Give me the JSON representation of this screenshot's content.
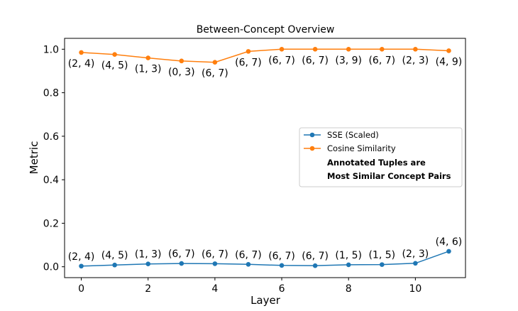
{
  "chart_data": {
    "type": "line",
    "title": "Between-Concept Overview",
    "xlabel": "Layer",
    "ylabel": "Metric",
    "xlim": [
      -0.5,
      11.5
    ],
    "ylim": [
      -0.05,
      1.05
    ],
    "xticks": [
      0,
      2,
      4,
      6,
      8,
      10
    ],
    "yticks": [
      0.0,
      0.2,
      0.4,
      0.6,
      0.8,
      1.0
    ],
    "xtick_labels": [
      "0",
      "2",
      "4",
      "6",
      "8",
      "10"
    ],
    "ytick_labels": [
      "0.0",
      "0.2",
      "0.4",
      "0.6",
      "0.8",
      "1.0"
    ],
    "grid": false,
    "legend_position": "center-right",
    "x": [
      0,
      1,
      2,
      3,
      4,
      5,
      6,
      7,
      8,
      9,
      10,
      11
    ],
    "series": [
      {
        "name": "SSE (Scaled)",
        "color": "#1f77b4",
        "values": [
          0.003,
          0.008,
          0.013,
          0.015,
          0.014,
          0.011,
          0.006,
          0.005,
          0.009,
          0.01,
          0.016,
          0.071
        ],
        "annotations": [
          "(2, 4)",
          "(4, 5)",
          "(1, 3)",
          "(6, 7)",
          "(6, 7)",
          "(6, 7)",
          "(6, 7)",
          "(6, 7)",
          "(1, 5)",
          "(1, 5)",
          "(2, 3)",
          "(4, 6)"
        ]
      },
      {
        "name": "Cosine Similarity",
        "color": "#ff7f0e",
        "values": [
          0.985,
          0.976,
          0.96,
          0.946,
          0.94,
          0.99,
          1.0,
          1.0,
          1.0,
          1.0,
          1.0,
          0.993
        ],
        "annotations": [
          "(2, 4)",
          "(4, 5)",
          "(1, 3)",
          "(0, 3)",
          "(6, 7)",
          "(6, 7)",
          "(6, 7)",
          "(6, 7)",
          "(3, 9)",
          "(6, 7)",
          "(2, 3)",
          "(4, 9)"
        ]
      }
    ],
    "legend_note": [
      "Annotated Tuples are",
      "Most Similar Concept Pairs"
    ]
  }
}
